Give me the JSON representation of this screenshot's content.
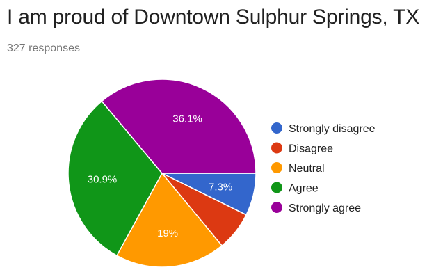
{
  "title": "I am proud of Downtown Sulphur Springs, TX",
  "responses_label": "327 responses",
  "chart_data": {
    "type": "pie",
    "title": "I am proud of Downtown Sulphur Springs, TX",
    "total_responses": 327,
    "legend_position": "right",
    "slices": [
      {
        "label": "Strongly disagree",
        "value": 7.3,
        "value_label": "7.3%",
        "color": "#3366cc"
      },
      {
        "label": "Disagree",
        "value": 6.7,
        "value_label": "",
        "color": "#dc3912"
      },
      {
        "label": "Neutral",
        "value": 19.0,
        "value_label": "19%",
        "color": "#ff9900"
      },
      {
        "label": "Agree",
        "value": 30.9,
        "value_label": "30.9%",
        "color": "#109618"
      },
      {
        "label": "Strongly agree",
        "value": 36.1,
        "value_label": "36.1%",
        "color": "#990099"
      }
    ]
  }
}
